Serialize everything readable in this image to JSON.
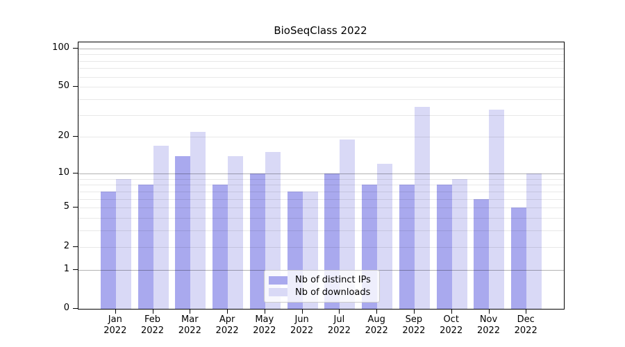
{
  "title": "BioSeqClass 2022",
  "chart_data": {
    "type": "bar",
    "title": "BioSeqClass 2022",
    "x_year": "2022",
    "categories": [
      "Jan",
      "Feb",
      "Mar",
      "Apr",
      "May",
      "Jun",
      "Jul",
      "Aug",
      "Sep",
      "Oct",
      "Nov",
      "Dec"
    ],
    "series": [
      {
        "name": "Nb of distinct IPs",
        "key": "distinct-ips",
        "color": "#a9a9ee",
        "values": [
          7,
          8,
          14,
          8,
          10,
          7,
          10,
          8,
          8,
          8,
          6,
          5
        ]
      },
      {
        "name": "Nb of downloads",
        "key": "downloads",
        "color": "#d9d9f6",
        "values": [
          9,
          17,
          22,
          14,
          15,
          7,
          19,
          12,
          35,
          9,
          33,
          10
        ]
      }
    ],
    "y_axis": {
      "scale": "log10(value+1)",
      "tick_values": [
        0,
        1,
        2,
        5,
        10,
        20,
        50,
        100
      ],
      "minor_gridlines": [
        3,
        4,
        6,
        7,
        8,
        9,
        30,
        40,
        60,
        70,
        80,
        90
      ],
      "decade_gridlines": [
        1,
        10,
        100
      ],
      "top_exponent": 2.05,
      "ylim_labels": [
        "0",
        "100"
      ]
    },
    "xlabel": "",
    "ylabel": "",
    "grid": true,
    "legend_position": "inside-bottom-center"
  },
  "colors": {
    "background": "#ffffff",
    "axis": "#000000",
    "grid_decade": "rgba(0,0,0,0.30)",
    "grid_minor": "rgba(0,0,0,0.09)"
  }
}
